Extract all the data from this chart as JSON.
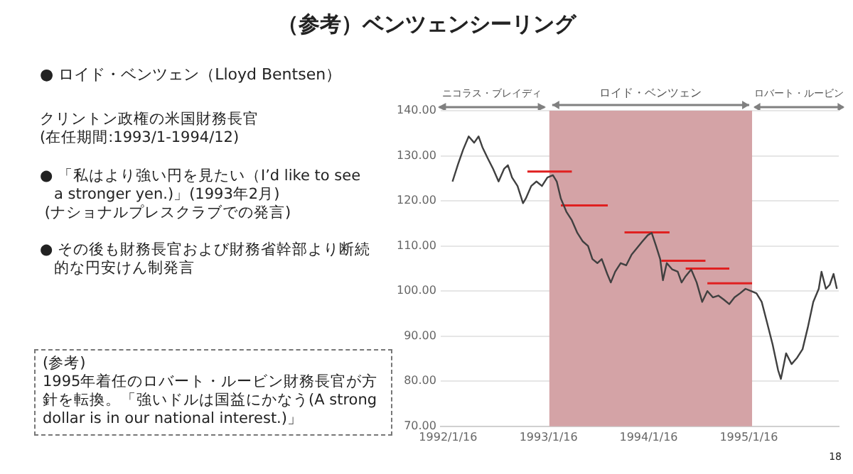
{
  "chart_data": {
    "type": "line",
    "title": "（参考）ベンツェンシーリング",
    "annotations": [
      "● ロイド・ベンツェン（Lloyd Bentsen）",
      "クリントン政権の米国財務長官\n(在任期間:1993/1-1994/12)",
      "● 「私はより強い円を見たい（I’d like to see\n   a stronger yen.)」(1993年2月)\n (ナショナルプレスクラブでの発言)",
      "● その後も財務長官および財務省幹部より断続的な円安けん制発言",
      "(参考)\n1995年着任のロバート・ルービン財務長官が方針を転換。「強いドルは国益にかなう(A strong dollar is in our national interest.)」",
      "18",
      "ニコラス・ブレイディ",
      "ロバート・ルービン"
    ],
    "series": [
      {
        "color": "#404040",
        "x": [
          "1992-02-01",
          "1992-02-21",
          "1992-03-11",
          "1992-03-31",
          "1992-04-20",
          "1992-05-06",
          "1992-05-20",
          "1992-06-08",
          "1992-06-28",
          "1992-07-18",
          "1992-08-07",
          "1992-08-21",
          "1992-09-05",
          "1992-09-25",
          "1992-10-15",
          "1992-10-25",
          "1992-11-14",
          "1992-12-03",
          "1992-12-23",
          "1993-01-12",
          "1993-02-01",
          "1993-02-15",
          "1993-03-02",
          "1993-03-22",
          "1993-04-11",
          "1993-05-01",
          "1993-05-21",
          "1993-06-09",
          "1993-06-25",
          "1993-07-13",
          "1993-07-29",
          "1993-08-18",
          "1993-08-31",
          "1993-09-16",
          "1993-10-06",
          "1993-10-26",
          "1993-11-15",
          "1993-12-04",
          "1993-12-24",
          "1994-01-13",
          "1994-01-27",
          "1994-02-12",
          "1994-02-27",
          "1994-03-09",
          "1994-03-23",
          "1994-04-12",
          "1994-05-02",
          "1994-05-16",
          "1994-05-31",
          "1994-06-20",
          "1994-07-10",
          "1994-07-30",
          "1994-08-18",
          "1994-09-07",
          "1994-09-27",
          "1994-10-17",
          "1994-11-06",
          "1994-11-25",
          "1994-12-15",
          "1995-01-04",
          "1995-01-24",
          "1995-02-13",
          "1995-03-04",
          "1995-03-24",
          "1995-04-13",
          "1995-05-03",
          "1995-05-13",
          "1995-06-01",
          "1995-06-21",
          "1995-07-11",
          "1995-07-31",
          "1995-08-19",
          "1995-09-08",
          "1995-09-28",
          "1995-10-08",
          "1995-10-24",
          "1995-11-07",
          "1995-11-21",
          "1995-12-03"
        ],
        "values": [
          124.3,
          128.1,
          131.4,
          134.3,
          132.9,
          134.3,
          131.9,
          129.5,
          127.1,
          124.3,
          127.1,
          127.9,
          125.2,
          123.3,
          119.5,
          120.5,
          123.3,
          124.3,
          123.3,
          125.2,
          125.7,
          124.3,
          120.5,
          117.6,
          115.7,
          112.9,
          111.0,
          110.0,
          107.1,
          106.2,
          107.1,
          103.8,
          101.9,
          104.3,
          106.2,
          105.7,
          108.1,
          109.5,
          111.0,
          112.4,
          112.9,
          110.0,
          107.1,
          102.4,
          106.2,
          104.8,
          104.3,
          101.9,
          103.3,
          104.8,
          101.9,
          97.6,
          100.0,
          98.6,
          99.0,
          98.1,
          97.1,
          98.6,
          99.5,
          100.5,
          100.0,
          99.5,
          97.6,
          92.9,
          88.1,
          82.4,
          80.5,
          86.2,
          83.8,
          85.2,
          87.1,
          91.9,
          97.6,
          100.5,
          104.3,
          100.5,
          101.4,
          103.8,
          100.5
        ]
      },
      {
        "type": "line",
        "color": "#e02020",
        "x": [
          "1992-10-31",
          "1993-04-11"
        ],
        "values": [
          126.5,
          126.5
        ]
      },
      {
        "type": "line",
        "color": "#e02020",
        "x": [
          "1993-03-02",
          "1993-08-20"
        ],
        "values": [
          119.0,
          119.0
        ]
      },
      {
        "type": "line",
        "color": "#e02020",
        "x": [
          "1993-10-20",
          "1994-04-02"
        ],
        "values": [
          113.0,
          113.0
        ]
      },
      {
        "type": "line",
        "color": "#e02020",
        "x": [
          "1994-03-03",
          "1994-08-11"
        ],
        "values": [
          106.7,
          106.7
        ]
      },
      {
        "type": "line",
        "color": "#e02020",
        "x": [
          "1994-05-31",
          "1994-11-06"
        ],
        "values": [
          105.0,
          105.0
        ]
      },
      {
        "type": "line",
        "color": "#e02020",
        "x": [
          "1994-08-18",
          "1995-01-28"
        ],
        "values": [
          101.7,
          101.7
        ]
      }
    ],
    "bands": [
      {
        "axis": "x",
        "from": "1993-01-19",
        "to": "1995-01-28",
        "label": "ロイド・ベンツェン",
        "color": "#d4a3a6"
      }
    ],
    "xlim": [
      "1991-12-20",
      "1995-12-10"
    ],
    "xticks": [
      {
        "value": "1992-01-16",
        "label": "1992/1/16"
      },
      {
        "value": "1993-01-16",
        "label": "1993/1/16"
      },
      {
        "value": "1994-01-16",
        "label": "1994/1/16"
      },
      {
        "value": "1995-01-16",
        "label": "1995/1/16"
      }
    ],
    "ylim": [
      70,
      140
    ],
    "yticks": [
      {
        "value": 70,
        "label": "70.00"
      },
      {
        "value": 80,
        "label": "80.00"
      },
      {
        "value": 90,
        "label": "90.00"
      },
      {
        "value": 100,
        "label": "100.00"
      },
      {
        "value": 110,
        "label": "110.00"
      },
      {
        "value": 120,
        "label": "120.00"
      },
      {
        "value": 130,
        "label": "130.00"
      },
      {
        "value": 140,
        "label": "140.00"
      }
    ],
    "grid": "y",
    "legend": false,
    "marker": "none",
    "line_style": "solid"
  }
}
